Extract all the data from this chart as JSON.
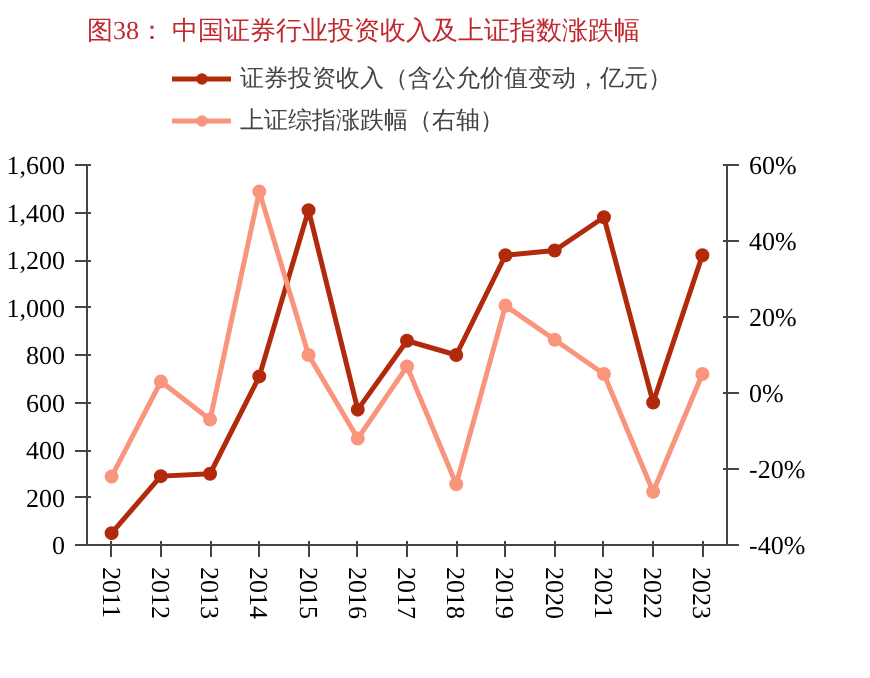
{
  "chart_data": {
    "type": "line",
    "title": "图38：  中国证券行业投资收入及上证指数涨跌幅",
    "categories": [
      "2011",
      "2012",
      "2013",
      "2014",
      "2015",
      "2016",
      "2017",
      "2018",
      "2019",
      "2020",
      "2021",
      "2022",
      "2023"
    ],
    "series": [
      {
        "name": "证券投资收入（含公允价值变动，亿元）",
        "color": "#b22a0c",
        "values": [
          50,
          290,
          300,
          710,
          1410,
          570,
          860,
          800,
          1220,
          1240,
          1380,
          600,
          1220
        ]
      },
      {
        "name": "上证综指涨跌幅（右轴）",
        "color": "#f8957c",
        "axis": "y2",
        "values": [
          -22,
          3,
          -7,
          53,
          10,
          -12,
          7,
          -24,
          23,
          14,
          5,
          -26,
          5
        ]
      }
    ],
    "ylim": [
      0,
      1600
    ],
    "yticks": [
      0,
      200,
      400,
      600,
      800,
      {
        "value": 1000,
        "label": "1,000"
      },
      {
        "value": 1200,
        "label": "1,200"
      },
      {
        "value": 1400,
        "label": "1,400"
      },
      {
        "value": 1600,
        "label": "1,600"
      }
    ],
    "y2lim": [
      -40,
      60
    ],
    "y2ticks": [
      {
        "value": -40,
        "label": "-40%"
      },
      {
        "value": -20,
        "label": "-20%"
      },
      {
        "value": 0,
        "label": "0%"
      },
      {
        "value": 20,
        "label": "20%"
      },
      {
        "value": 40,
        "label": "40%"
      },
      {
        "value": 60,
        "label": "60%"
      }
    ],
    "grid": false,
    "legend": "top",
    "marker": "circle",
    "line_style": "solid"
  }
}
